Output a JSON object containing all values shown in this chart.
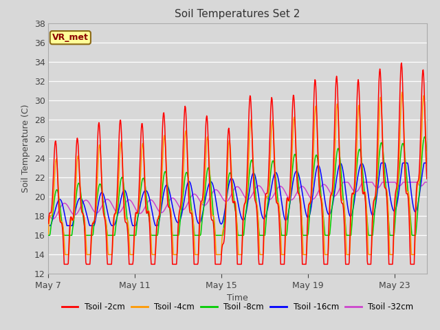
{
  "title": "Soil Temperatures Set 2",
  "xlabel": "Time",
  "ylabel": "Soil Temperature (C)",
  "ylim": [
    12,
    38
  ],
  "yticks": [
    12,
    14,
    16,
    18,
    20,
    22,
    24,
    26,
    28,
    30,
    32,
    34,
    36,
    38
  ],
  "bg_color": "#dcdcdc",
  "plot_bg_color": "#dcdcdc",
  "line_colors": {
    "Tsoil -2cm": "#ff0000",
    "Tsoil -4cm": "#ff9900",
    "Tsoil -8cm": "#00cc00",
    "Tsoil -16cm": "#0000ff",
    "Tsoil -32cm": "#cc44cc"
  },
  "annotation_text": "VR_met",
  "xtick_labels": [
    "May 7",
    "May 11",
    "May 15",
    "May 19",
    "May 23"
  ],
  "n_days": 17.5,
  "samples_per_day": 48
}
